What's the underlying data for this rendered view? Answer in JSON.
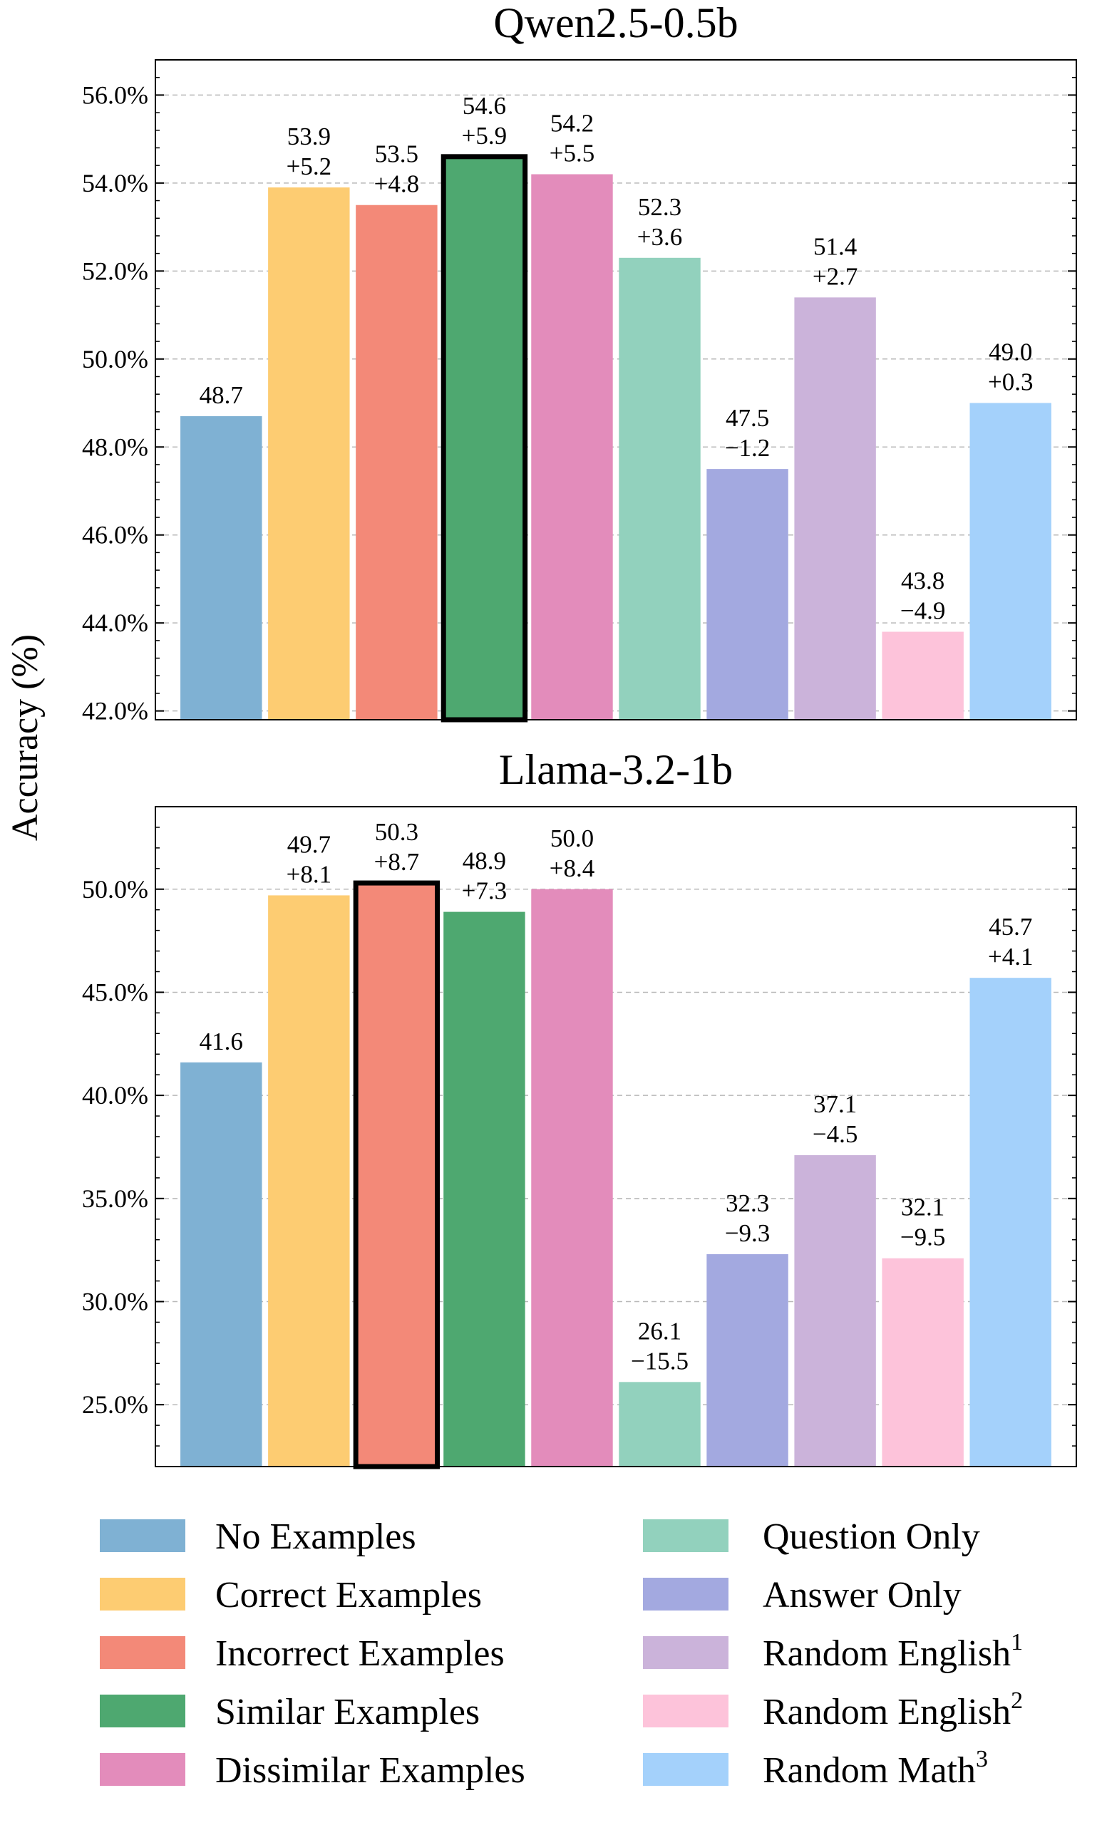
{
  "chart_data": [
    {
      "type": "bar",
      "title": "Qwen2.5-0.5b",
      "ylabel": "Accuracy (%)",
      "ylim": [
        41.8,
        56.8
      ],
      "yticks": [
        42,
        44,
        46,
        48,
        50,
        52,
        54,
        56
      ],
      "ytick_labels": [
        "42.0%",
        "44.0%",
        "46.0%",
        "48.0%",
        "50.0%",
        "52.0%",
        "54.0%",
        "56.0%"
      ],
      "grid": true,
      "categories": [
        "No Examples",
        "Correct Examples",
        "Incorrect Examples",
        "Similar Examples",
        "Dissimilar Examples",
        "Question Only",
        "Answer Only",
        "Random English1",
        "Random English2",
        "Random Math3"
      ],
      "values": [
        48.7,
        53.9,
        53.5,
        54.6,
        54.2,
        52.3,
        47.5,
        51.4,
        43.8,
        49.0
      ],
      "value_labels": [
        "48.7",
        "53.9",
        "53.5",
        "54.6",
        "54.2",
        "52.3",
        "47.5",
        "51.4",
        "43.8",
        "49.0"
      ],
      "deltas": [
        "",
        "+5.2",
        "+4.8",
        "+5.9",
        "+5.5",
        "+3.6",
        "−1.2",
        "+2.7",
        "−4.9",
        "+0.3"
      ],
      "highlighted_index": 3
    },
    {
      "type": "bar",
      "title": "Llama-3.2-1b",
      "ylabel": "Accuracy (%)",
      "ylim": [
        22.0,
        54.0
      ],
      "yticks": [
        25,
        30,
        35,
        40,
        45,
        50
      ],
      "ytick_labels": [
        "25.0%",
        "30.0%",
        "35.0%",
        "40.0%",
        "45.0%",
        "50.0%"
      ],
      "grid": true,
      "categories": [
        "No Examples",
        "Correct Examples",
        "Incorrect Examples",
        "Similar Examples",
        "Dissimilar Examples",
        "Question Only",
        "Answer Only",
        "Random English1",
        "Random English2",
        "Random Math3"
      ],
      "values": [
        41.6,
        49.7,
        50.3,
        48.9,
        50.0,
        26.1,
        32.3,
        37.1,
        32.1,
        45.7
      ],
      "value_labels": [
        "41.6",
        "49.7",
        "50.3",
        "48.9",
        "50.0",
        "26.1",
        "32.3",
        "37.1",
        "32.1",
        "45.7"
      ],
      "deltas": [
        "",
        "+8.1",
        "+8.7",
        "+7.3",
        "+8.4",
        "−15.5",
        "−9.3",
        "−4.5",
        "−9.5",
        "+4.1"
      ],
      "highlighted_index": 2
    }
  ],
  "shared_ylabel": "Accuracy (%)",
  "legend": {
    "placement": "bottom",
    "items": [
      {
        "label": "No Examples",
        "sup": "",
        "color": "#7fb1d3"
      },
      {
        "label": "Correct Examples",
        "sup": "",
        "color": "#fdcc72"
      },
      {
        "label": "Incorrect Examples",
        "sup": "",
        "color": "#f38978"
      },
      {
        "label": "Similar Examples",
        "sup": "",
        "color": "#4ea870"
      },
      {
        "label": "Dissimilar Examples",
        "sup": "",
        "color": "#e38cbb"
      },
      {
        "label": "Question Only",
        "sup": "",
        "color": "#92d1bd"
      },
      {
        "label": "Answer Only",
        "sup": "",
        "color": "#a3a9e0"
      },
      {
        "label": "Random English",
        "sup": "1",
        "color": "#cbb3da"
      },
      {
        "label": "Random English",
        "sup": "2",
        "color": "#fdc3da"
      },
      {
        "label": "Random Math",
        "sup": "3",
        "color": "#a4d1fb"
      }
    ]
  },
  "colors": {
    "bar_colors": [
      "#7fb1d3",
      "#fdcc72",
      "#f38978",
      "#4ea870",
      "#e38cbb",
      "#92d1bd",
      "#a3a9e0",
      "#cbb3da",
      "#fdc3da",
      "#a4d1fb"
    ],
    "highlight_edge": "#000000",
    "grid": "#b8b8b8"
  }
}
